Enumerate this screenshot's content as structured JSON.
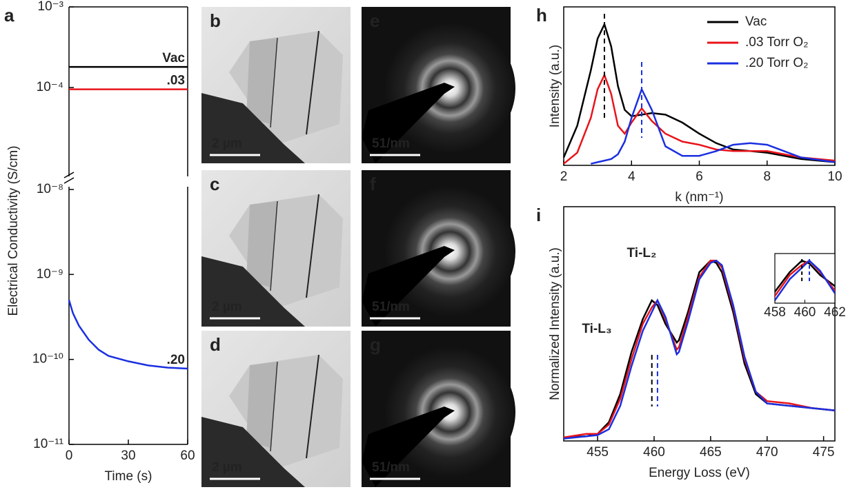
{
  "chart_data": [
    {
      "type": "line",
      "panel": "a",
      "ylabel": "Electrical Conductivity (S/cm)",
      "log_y": true,
      "xlim": [
        0,
        60
      ],
      "ylim": [
        1e-05,
        0.001
      ],
      "yticks": [
        {
          "value": 0.001,
          "label": "10⁻³"
        },
        {
          "value": 0.0001,
          "label": "10⁻⁴"
        }
      ],
      "series": [
        {
          "name": "Vac",
          "color": "#000000",
          "x": [
            0,
            60
          ],
          "values": [
            0.00018,
            0.00018
          ]
        },
        {
          "name": ".03",
          "color": "#e8141b",
          "x": [
            0,
            60
          ],
          "values": [
            9.5e-05,
            9.5e-05
          ]
        }
      ]
    },
    {
      "type": "line",
      "log_y": true,
      "xlabel": "Time (s)",
      "xlim": [
        0,
        60
      ],
      "xticks": [
        0,
        30,
        60
      ],
      "ylim": [
        1e-11,
        1e-08
      ],
      "yticks": [
        {
          "value": 1e-08,
          "label": "10⁻⁸"
        },
        {
          "value": 1e-09,
          "label": "10⁻⁹"
        },
        {
          "value": 1e-10,
          "label": "10⁻¹⁰"
        },
        {
          "value": 1e-11,
          "label": "10⁻¹¹"
        }
      ],
      "series": [
        {
          "name": ".20",
          "color": "#1a2fe0",
          "x": [
            0,
            2,
            5,
            10,
            15,
            20,
            30,
            40,
            50,
            60
          ],
          "values": [
            5e-10,
            3.5e-10,
            2.5e-10,
            1.7e-10,
            1.3e-10,
            1.1e-10,
            9.5e-11,
            8.5e-11,
            8e-11,
            7.8e-11
          ]
        }
      ]
    },
    {
      "type": "line",
      "panel": "h",
      "xlabel": "k (nm⁻¹)",
      "ylabel": "Intensity (a.u.)",
      "xlim": [
        2,
        10
      ],
      "xticks": [
        2,
        4,
        6,
        8,
        10
      ],
      "ylim": [
        0,
        1
      ],
      "legend": "upper right",
      "x": [
        2,
        2.4,
        2.8,
        3.0,
        3.2,
        3.4,
        3.6,
        3.8,
        4.0,
        4.3,
        4.6,
        5.0,
        5.5,
        6.0,
        6.5,
        7.0,
        7.5,
        8.0,
        8.5,
        9.0,
        10.0
      ],
      "series": [
        {
          "name": "Vac",
          "color": "#000000",
          "values": [
            0.05,
            0.25,
            0.6,
            0.8,
            0.89,
            0.75,
            0.5,
            0.35,
            0.31,
            0.32,
            0.33,
            0.32,
            0.27,
            0.2,
            0.14,
            0.1,
            0.09,
            0.08,
            0.06,
            0.04,
            0.02
          ]
        },
        {
          "name": ".03 Torr O₂",
          "color": "#e8141b",
          "values": [
            0.01,
            0.08,
            0.3,
            0.48,
            0.57,
            0.45,
            0.25,
            0.2,
            0.27,
            0.36,
            0.28,
            0.2,
            0.15,
            0.13,
            0.1,
            0.09,
            0.09,
            0.09,
            0.07,
            0.05,
            0.03
          ]
        },
        {
          "name": ".20 Torr O₂",
          "color": "#1a2fe0",
          "values": [
            null,
            null,
            0.01,
            0.02,
            0.03,
            0.04,
            0.07,
            0.15,
            0.3,
            0.48,
            0.35,
            0.12,
            0.06,
            0.06,
            0.09,
            0.13,
            0.14,
            0.13,
            0.09,
            0.05,
            0.02
          ]
        }
      ],
      "markers": [
        {
          "x": 3.2,
          "color": "#000000"
        },
        {
          "x": 4.3,
          "color": "#1a2fe0"
        }
      ]
    },
    {
      "type": "line",
      "panel": "i",
      "xlabel": "Energy Loss (eV)",
      "ylabel": "Normalized Intensity (a.u.)",
      "xlim": [
        452,
        476
      ],
      "xticks": [
        455,
        460,
        465,
        470,
        475
      ],
      "ylim": [
        0,
        1
      ],
      "annotations": [
        "Ti-L₃",
        "Ti-L₂"
      ],
      "x": [
        452,
        454,
        455,
        456,
        457,
        458,
        459,
        459.8,
        460.3,
        461,
        462,
        462.2,
        463,
        464,
        465,
        465.5,
        466,
        467,
        468,
        469,
        470,
        472,
        474,
        476
      ],
      "series": [
        {
          "color": "#000000",
          "values": [
            0.015,
            0.02,
            0.03,
            0.08,
            0.2,
            0.38,
            0.52,
            0.6,
            0.58,
            0.5,
            0.42,
            0.43,
            0.55,
            0.72,
            0.77,
            0.76,
            0.72,
            0.55,
            0.33,
            0.2,
            0.16,
            0.15,
            0.14,
            0.13
          ]
        },
        {
          "color": "#e8141b",
          "values": [
            0.015,
            0.03,
            0.03,
            0.07,
            0.18,
            0.35,
            0.5,
            0.57,
            0.6,
            0.52,
            0.39,
            0.4,
            0.53,
            0.7,
            0.77,
            0.77,
            0.74,
            0.57,
            0.35,
            0.21,
            0.17,
            0.16,
            0.14,
            0.13
          ]
        },
        {
          "color": "#1a2fe0",
          "values": [
            0.01,
            0.02,
            0.025,
            0.05,
            0.15,
            0.32,
            0.47,
            0.55,
            0.6,
            0.53,
            0.37,
            0.38,
            0.51,
            0.69,
            0.76,
            0.77,
            0.75,
            0.58,
            0.36,
            0.21,
            0.16,
            0.15,
            0.14,
            0.13
          ]
        }
      ],
      "markers": [
        {
          "x": 459.8,
          "color": "#000000"
        },
        {
          "x": 460.3,
          "color": "#1a2fe0"
        }
      ],
      "inset": {
        "xlim": [
          458,
          462
        ],
        "xticks": [
          458,
          460,
          462
        ],
        "ylim": [
          0.3,
          0.65
        ]
      }
    }
  ],
  "images": [
    {
      "label": "b",
      "scale_bar": "2 µm",
      "kind": "tem"
    },
    {
      "label": "c",
      "scale_bar": "2 µm",
      "kind": "tem"
    },
    {
      "label": "d",
      "scale_bar": "2 µm",
      "kind": "tem"
    },
    {
      "label": "e",
      "scale_bar": "51/nm",
      "kind": "diffraction"
    },
    {
      "label": "f",
      "scale_bar": "51/nm",
      "kind": "diffraction"
    },
    {
      "label": "g",
      "scale_bar": "51/nm",
      "kind": "diffraction"
    }
  ]
}
